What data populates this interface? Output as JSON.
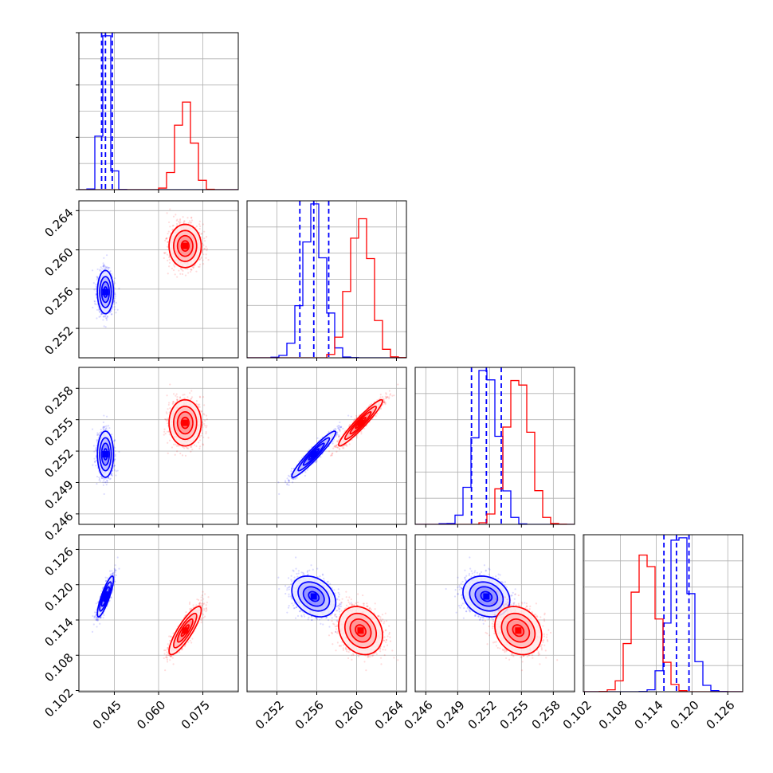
{
  "chart_data": {
    "type": "corner",
    "parameters": [
      {
        "ticks": [
          0.045,
          0.06,
          0.075
        ],
        "tick_labels": [
          "0.045",
          "0.060",
          "0.075"
        ],
        "range": [
          0.033,
          0.087
        ]
      },
      {
        "ticks": [
          0.252,
          0.256,
          0.26,
          0.264
        ],
        "tick_labels": [
          "0.252",
          "0.256",
          "0.260",
          "0.264"
        ],
        "range": [
          0.249,
          0.265
        ]
      },
      {
        "ticks": [
          0.246,
          0.249,
          0.252,
          0.255,
          0.258
        ],
        "tick_labels": [
          "0.246",
          "0.249",
          "0.252",
          "0.255",
          "0.258"
        ],
        "range": [
          0.245,
          0.26
        ]
      },
      {
        "ticks": [
          0.102,
          0.108,
          0.114,
          0.12,
          0.126
        ],
        "tick_labels": [
          "0.102",
          "0.108",
          "0.114",
          "0.120",
          "0.126"
        ],
        "range": [
          0.1018,
          0.1285
        ]
      }
    ],
    "series": [
      {
        "name": "",
        "color": "#0000ff",
        "means": [
          0.042,
          0.2557,
          0.2517,
          0.118
        ],
        "sigmas": [
          0.0013,
          0.00105,
          0.00105,
          0.00165
        ],
        "correlations": [
          [
            1,
            0,
            0,
            0.85
          ],
          [
            0,
            1,
            0.95,
            -0.3
          ],
          [
            0,
            0.95,
            1,
            -0.2
          ],
          [
            0.85,
            -0.3,
            -0.2,
            1
          ]
        ],
        "quantiles": [
          [
            0.0407,
            0.042,
            0.0443
          ],
          [
            0.2543,
            0.2557,
            0.2572
          ],
          [
            0.2503,
            0.2517,
            0.2531
          ],
          [
            0.1153,
            0.1174,
            0.1195
          ]
        ]
      },
      {
        "name": "",
        "color": "#ff0000",
        "means": [
          0.069,
          0.2604,
          0.2547,
          0.1122
        ],
        "sigmas": [
          0.0026,
          0.00105,
          0.00105,
          0.00195
        ],
        "correlations": [
          [
            1,
            0,
            0,
            0.85
          ],
          [
            0,
            1,
            0.95,
            -0.2
          ],
          [
            0,
            0.95,
            1,
            -0.2
          ],
          [
            0.85,
            -0.2,
            -0.2,
            1
          ]
        ]
      }
    ],
    "diag_hist_bins": 20,
    "grid": true
  }
}
